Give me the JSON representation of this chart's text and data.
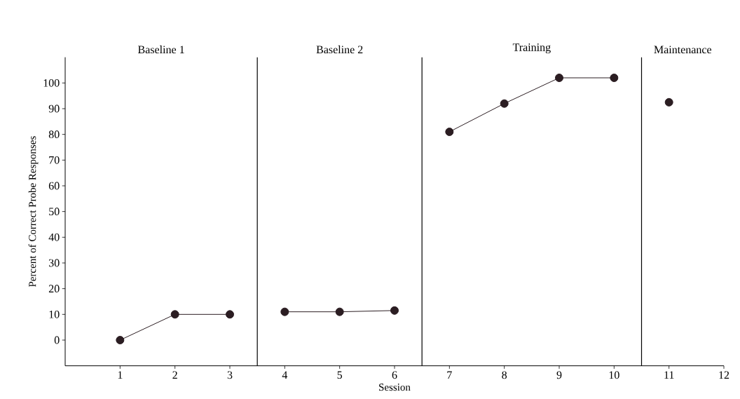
{
  "chart_data": {
    "type": "line",
    "xlabel": "Session",
    "ylabel": "Percent of Correct Probe Responses",
    "series": [
      {
        "x": [
          1,
          2,
          3
        ],
        "values": [
          0,
          10,
          10
        ],
        "color": "#2b1d22"
      },
      {
        "x": [
          4,
          5,
          6
        ],
        "values": [
          11,
          11,
          11.5
        ],
        "color": "#2b1d22"
      },
      {
        "x": [
          7,
          8,
          9,
          10
        ],
        "values": [
          81,
          92,
          102,
          102
        ],
        "color": "#2b1d22"
      },
      {
        "x": [
          11
        ],
        "values": [
          92.5
        ],
        "color": "#2b1d22"
      }
    ],
    "xlim": [
      0,
      12
    ],
    "ylim": [
      -10,
      110
    ],
    "xticks": [
      1,
      2,
      3,
      4,
      5,
      6,
      7,
      8,
      9,
      10,
      11,
      12
    ],
    "yticks": [
      0,
      10,
      20,
      30,
      40,
      50,
      60,
      70,
      80,
      90,
      100
    ],
    "ref_lines": [
      {
        "axis": "x",
        "value": 3.5
      },
      {
        "axis": "x",
        "value": 6.5
      },
      {
        "axis": "x",
        "value": 10.5
      }
    ],
    "annotations": [
      "Baseline 1",
      "Baseline 2",
      "Training",
      "Maintenance"
    ],
    "marker": "circle",
    "line_style": "solid",
    "grid": false
  }
}
